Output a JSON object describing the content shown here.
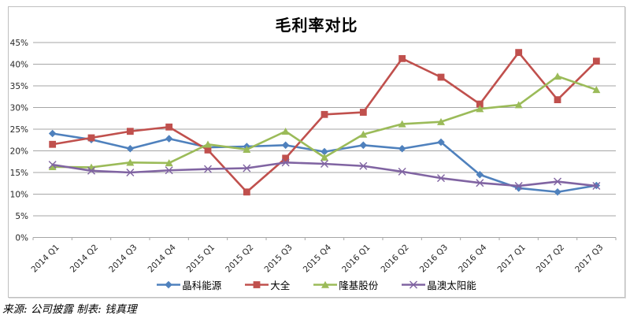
{
  "title": "毛利率对比",
  "footer": {
    "text": "来源: 公司披露  制表: 钱真理"
  },
  "chart_data": {
    "type": "line",
    "title": "毛利率对比",
    "categories": [
      "2014 Q1",
      "2014 Q2",
      "2014 Q3",
      "2014 Q4",
      "2015 Q1",
      "2015 Q2",
      "2015 Q3",
      "2015 Q4",
      "2016 Q1",
      "2016 Q2",
      "2016 Q3",
      "2016 Q4",
      "2017 Q1",
      "2017 Q2",
      "2017 Q3"
    ],
    "series": [
      {
        "name": "晶科能源",
        "color": "#4F81BD",
        "marker": "diamond",
        "values": [
          24.0,
          22.6,
          20.5,
          22.8,
          20.8,
          21.0,
          21.3,
          19.8,
          21.3,
          20.5,
          22.0,
          14.5,
          11.4,
          10.5,
          12.0
        ]
      },
      {
        "name": "大全",
        "color": "#C0504D",
        "marker": "square",
        "values": [
          21.5,
          23.0,
          24.5,
          25.5,
          20.2,
          10.5,
          18.3,
          28.4,
          28.9,
          41.3,
          37.0,
          30.8,
          42.7,
          31.8,
          40.7
        ]
      },
      {
        "name": "隆基股份",
        "color": "#9BBB59",
        "marker": "triangle",
        "values": [
          16.3,
          16.2,
          17.3,
          17.2,
          21.5,
          20.3,
          24.5,
          18.5,
          23.8,
          26.2,
          26.7,
          29.7,
          30.6,
          37.2,
          34.1
        ]
      },
      {
        "name": "晶澳太阳能",
        "color": "#8064A2",
        "marker": "x",
        "values": [
          16.8,
          15.4,
          15.0,
          15.5,
          15.8,
          16.0,
          17.3,
          17.0,
          16.5,
          15.2,
          13.7,
          12.6,
          11.9,
          12.9,
          11.9
        ]
      }
    ],
    "xlabel": "",
    "ylabel": "",
    "ylim": [
      0,
      45
    ],
    "ytick_step": 5,
    "ytick_labels": [
      "0%",
      "5%",
      "10%",
      "15%",
      "20%",
      "25%",
      "30%",
      "35%",
      "40%",
      "45%"
    ],
    "grid": true,
    "gridline_color": "#a6a6a6",
    "legend_position": "bottom"
  }
}
